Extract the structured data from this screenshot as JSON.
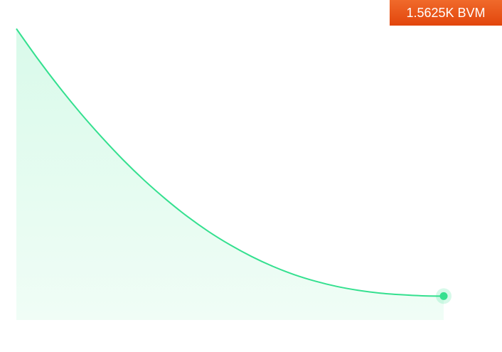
{
  "price_badge": {
    "label": "1.5625K BVM",
    "color": "#e9551a"
  },
  "colors": {
    "line": "#34e08f",
    "fill": "#dcfbea",
    "endpoint": "#34e08f"
  },
  "chart_data": {
    "type": "area",
    "title": "",
    "xlabel": "",
    "ylabel": "",
    "grid": false,
    "legend": "none",
    "xlim": [
      0,
      100
    ],
    "ylim": [
      0,
      100
    ],
    "series": [
      {
        "x": [
          0,
          5,
          10,
          15,
          20,
          25,
          30,
          35,
          40,
          45,
          50,
          55,
          60,
          65,
          70,
          75,
          80,
          85,
          90,
          95,
          100
        ],
        "values": [
          100,
          89.1,
          78.9,
          69.4,
          60.6,
          52.4,
          44.9,
          38.1,
          31.9,
          26.4,
          21.6,
          17.4,
          13.8,
          10.8,
          8.4,
          6.5,
          5.1,
          4.1,
          3.5,
          3.1,
          3.0
        ]
      }
    ],
    "endpoint_marker": true
  }
}
